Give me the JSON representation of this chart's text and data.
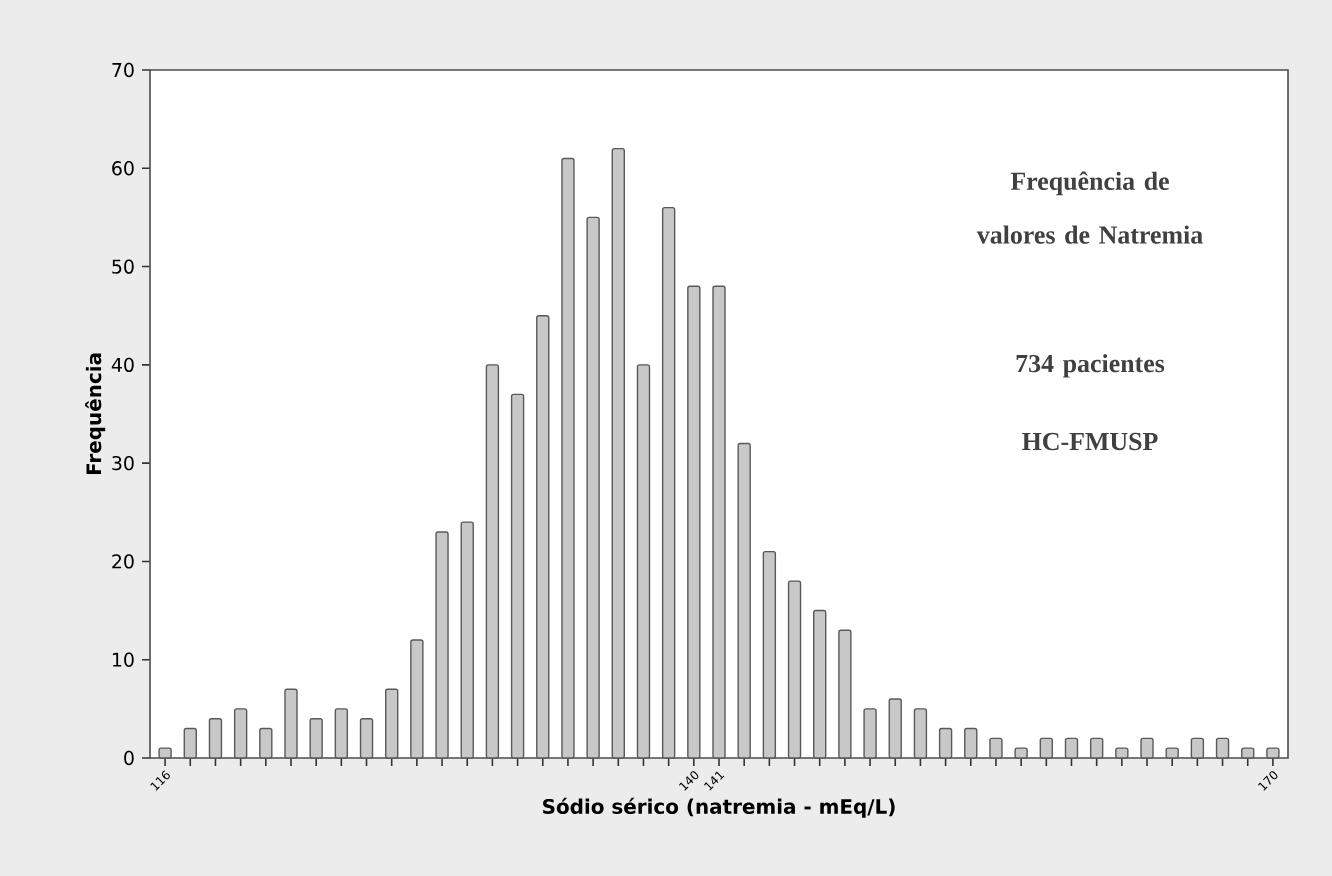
{
  "chart_data": {
    "type": "bar",
    "xlabel": "Sódio sérico (natremia - mEq/L)",
    "ylabel": "Frequência",
    "annotations": [
      "Frequência de valores de Natremia",
      "734 pacientes",
      "HC-FMUSP"
    ],
    "categories": [
      "116",
      null,
      null,
      null,
      null,
      null,
      null,
      null,
      null,
      null,
      null,
      null,
      null,
      null,
      null,
      null,
      null,
      null,
      null,
      null,
      null,
      "140",
      "141",
      null,
      null,
      null,
      null,
      null,
      null,
      null,
      null,
      null,
      null,
      null,
      null,
      null,
      null,
      null,
      null,
      null,
      null,
      null,
      null,
      null,
      "170"
    ],
    "values": [
      1,
      3,
      4,
      5,
      3,
      7,
      4,
      5,
      4,
      7,
      12,
      23,
      24,
      40,
      37,
      45,
      61,
      55,
      62,
      40,
      56,
      48,
      48,
      32,
      21,
      18,
      15,
      13,
      5,
      6,
      5,
      3,
      3,
      2,
      1,
      2,
      2,
      2,
      1,
      2,
      1,
      2,
      2,
      1,
      1
    ],
    "color": "#c8c8c8",
    "ylim": [
      0,
      70
    ],
    "yticks": [
      0,
      10,
      20,
      30,
      40,
      50,
      60,
      70
    ]
  }
}
